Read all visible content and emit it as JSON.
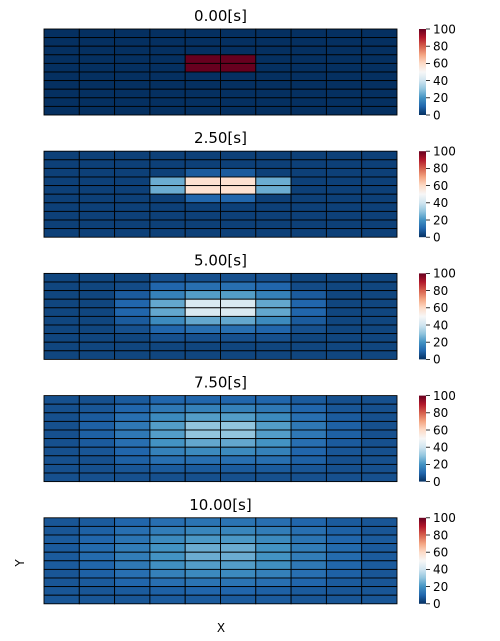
{
  "figure": {
    "xlabel": "X",
    "ylabel": "Y"
  },
  "chart_data": {
    "type": "heatmap",
    "colormap": [
      "#053061",
      "#2166ac",
      "#4393c3",
      "#92c5de",
      "#d1e5f0",
      "#f7f7f7",
      "#fddbc7",
      "#f4a582",
      "#d6604d",
      "#b2182b",
      "#67001f"
    ],
    "gridline_color": "#000000",
    "panels": [
      {
        "title": "0.00[s]",
        "vmin": 0,
        "vmax": 100,
        "colorbar_ticks": [
          "0",
          "20",
          "40",
          "60",
          "80",
          "100"
        ],
        "values": [
          [
            0,
            0,
            0,
            0,
            0,
            0,
            0,
            0,
            0,
            0
          ],
          [
            0,
            0,
            0,
            0,
            0,
            0,
            0,
            0,
            0,
            0
          ],
          [
            0,
            0,
            0,
            0,
            0,
            0,
            0,
            0,
            0,
            0
          ],
          [
            0,
            0,
            0,
            0,
            100,
            100,
            0,
            0,
            0,
            0
          ],
          [
            0,
            0,
            0,
            0,
            100,
            100,
            0,
            0,
            0,
            0
          ],
          [
            0,
            0,
            0,
            0,
            0,
            0,
            0,
            0,
            0,
            0
          ],
          [
            0,
            0,
            0,
            0,
            0,
            0,
            0,
            0,
            0,
            0
          ],
          [
            0,
            0,
            0,
            0,
            0,
            0,
            0,
            0,
            0,
            0
          ],
          [
            0,
            0,
            0,
            0,
            0,
            0,
            0,
            0,
            0,
            0
          ],
          [
            0,
            0,
            0,
            0,
            0,
            0,
            0,
            0,
            0,
            0
          ]
        ]
      },
      {
        "title": "2.50[s]",
        "vmin": 0,
        "vmax": 100,
        "colorbar_ticks": [
          "0",
          "20",
          "40",
          "60",
          "80",
          "100"
        ],
        "values": [
          [
            3,
            3,
            3,
            3,
            3,
            3,
            3,
            3,
            3,
            3
          ],
          [
            3,
            3,
            3,
            3,
            3,
            3,
            3,
            3,
            3,
            3
          ],
          [
            3,
            3,
            3,
            3,
            8,
            8,
            3,
            3,
            3,
            3
          ],
          [
            3,
            3,
            3,
            25,
            58,
            58,
            25,
            3,
            3,
            3
          ],
          [
            3,
            3,
            3,
            25,
            58,
            58,
            25,
            3,
            3,
            3
          ],
          [
            3,
            3,
            3,
            3,
            10,
            10,
            3,
            3,
            3,
            3
          ],
          [
            3,
            3,
            3,
            3,
            3,
            3,
            3,
            3,
            3,
            3
          ],
          [
            3,
            3,
            3,
            3,
            3,
            3,
            3,
            3,
            3,
            3
          ],
          [
            3,
            3,
            3,
            3,
            3,
            3,
            3,
            3,
            3,
            3
          ],
          [
            3,
            3,
            3,
            3,
            3,
            3,
            3,
            3,
            3,
            3
          ]
        ]
      },
      {
        "title": "5.00[s]",
        "vmin": 0,
        "vmax": 100,
        "colorbar_ticks": [
          "0",
          "20",
          "40",
          "60",
          "80",
          "100"
        ],
        "values": [
          [
            4,
            4,
            4,
            6,
            6,
            6,
            6,
            4,
            4,
            4
          ],
          [
            4,
            4,
            5,
            10,
            12,
            12,
            10,
            5,
            4,
            4
          ],
          [
            4,
            4,
            8,
            16,
            22,
            22,
            16,
            8,
            4,
            4
          ],
          [
            4,
            4,
            10,
            24,
            42,
            42,
            24,
            10,
            4,
            4
          ],
          [
            4,
            4,
            10,
            24,
            42,
            42,
            24,
            10,
            4,
            4
          ],
          [
            4,
            4,
            8,
            18,
            24,
            24,
            18,
            8,
            4,
            4
          ],
          [
            4,
            4,
            6,
            10,
            12,
            12,
            10,
            6,
            4,
            4
          ],
          [
            4,
            4,
            4,
            6,
            6,
            6,
            6,
            4,
            4,
            4
          ],
          [
            4,
            4,
            4,
            4,
            4,
            4,
            4,
            4,
            4,
            4
          ],
          [
            4,
            4,
            4,
            4,
            4,
            4,
            4,
            4,
            4,
            4
          ]
        ]
      },
      {
        "title": "7.50[s]",
        "vmin": 0,
        "vmax": 100,
        "colorbar_ticks": [
          "0",
          "20",
          "40",
          "60",
          "80",
          "100"
        ],
        "values": [
          [
            6,
            6,
            8,
            10,
            10,
            10,
            10,
            8,
            6,
            6
          ],
          [
            6,
            7,
            10,
            14,
            16,
            16,
            14,
            10,
            7,
            6
          ],
          [
            6,
            8,
            12,
            18,
            22,
            22,
            18,
            12,
            8,
            6
          ],
          [
            6,
            9,
            14,
            22,
            30,
            30,
            22,
            14,
            9,
            6
          ],
          [
            6,
            9,
            14,
            22,
            30,
            30,
            22,
            14,
            9,
            6
          ],
          [
            6,
            8,
            12,
            20,
            24,
            24,
            20,
            12,
            8,
            6
          ],
          [
            6,
            7,
            10,
            16,
            18,
            18,
            16,
            10,
            7,
            6
          ],
          [
            6,
            6,
            9,
            12,
            12,
            12,
            12,
            9,
            6,
            6
          ],
          [
            6,
            6,
            7,
            8,
            8,
            8,
            8,
            7,
            6,
            6
          ],
          [
            6,
            6,
            6,
            6,
            6,
            6,
            6,
            6,
            6,
            6
          ]
        ]
      },
      {
        "title": "10.00[s]",
        "vmin": 0,
        "vmax": 100,
        "colorbar_ticks": [
          "0",
          "20",
          "40",
          "60",
          "80",
          "100"
        ],
        "values": [
          [
            7,
            8,
            10,
            12,
            13,
            13,
            12,
            10,
            8,
            7
          ],
          [
            7,
            9,
            12,
            15,
            17,
            17,
            15,
            12,
            9,
            7
          ],
          [
            8,
            10,
            13,
            18,
            21,
            21,
            18,
            13,
            10,
            8
          ],
          [
            8,
            11,
            15,
            20,
            25,
            25,
            20,
            15,
            11,
            8
          ],
          [
            8,
            11,
            15,
            20,
            25,
            25,
            20,
            15,
            11,
            8
          ],
          [
            8,
            10,
            14,
            19,
            22,
            22,
            19,
            14,
            10,
            8
          ],
          [
            7,
            9,
            12,
            16,
            18,
            18,
            16,
            12,
            9,
            7
          ],
          [
            7,
            8,
            10,
            12,
            13,
            13,
            12,
            10,
            8,
            7
          ],
          [
            7,
            7,
            8,
            9,
            10,
            10,
            9,
            8,
            7,
            7
          ],
          [
            7,
            7,
            7,
            8,
            8,
            8,
            8,
            7,
            7,
            7
          ]
        ]
      }
    ]
  }
}
